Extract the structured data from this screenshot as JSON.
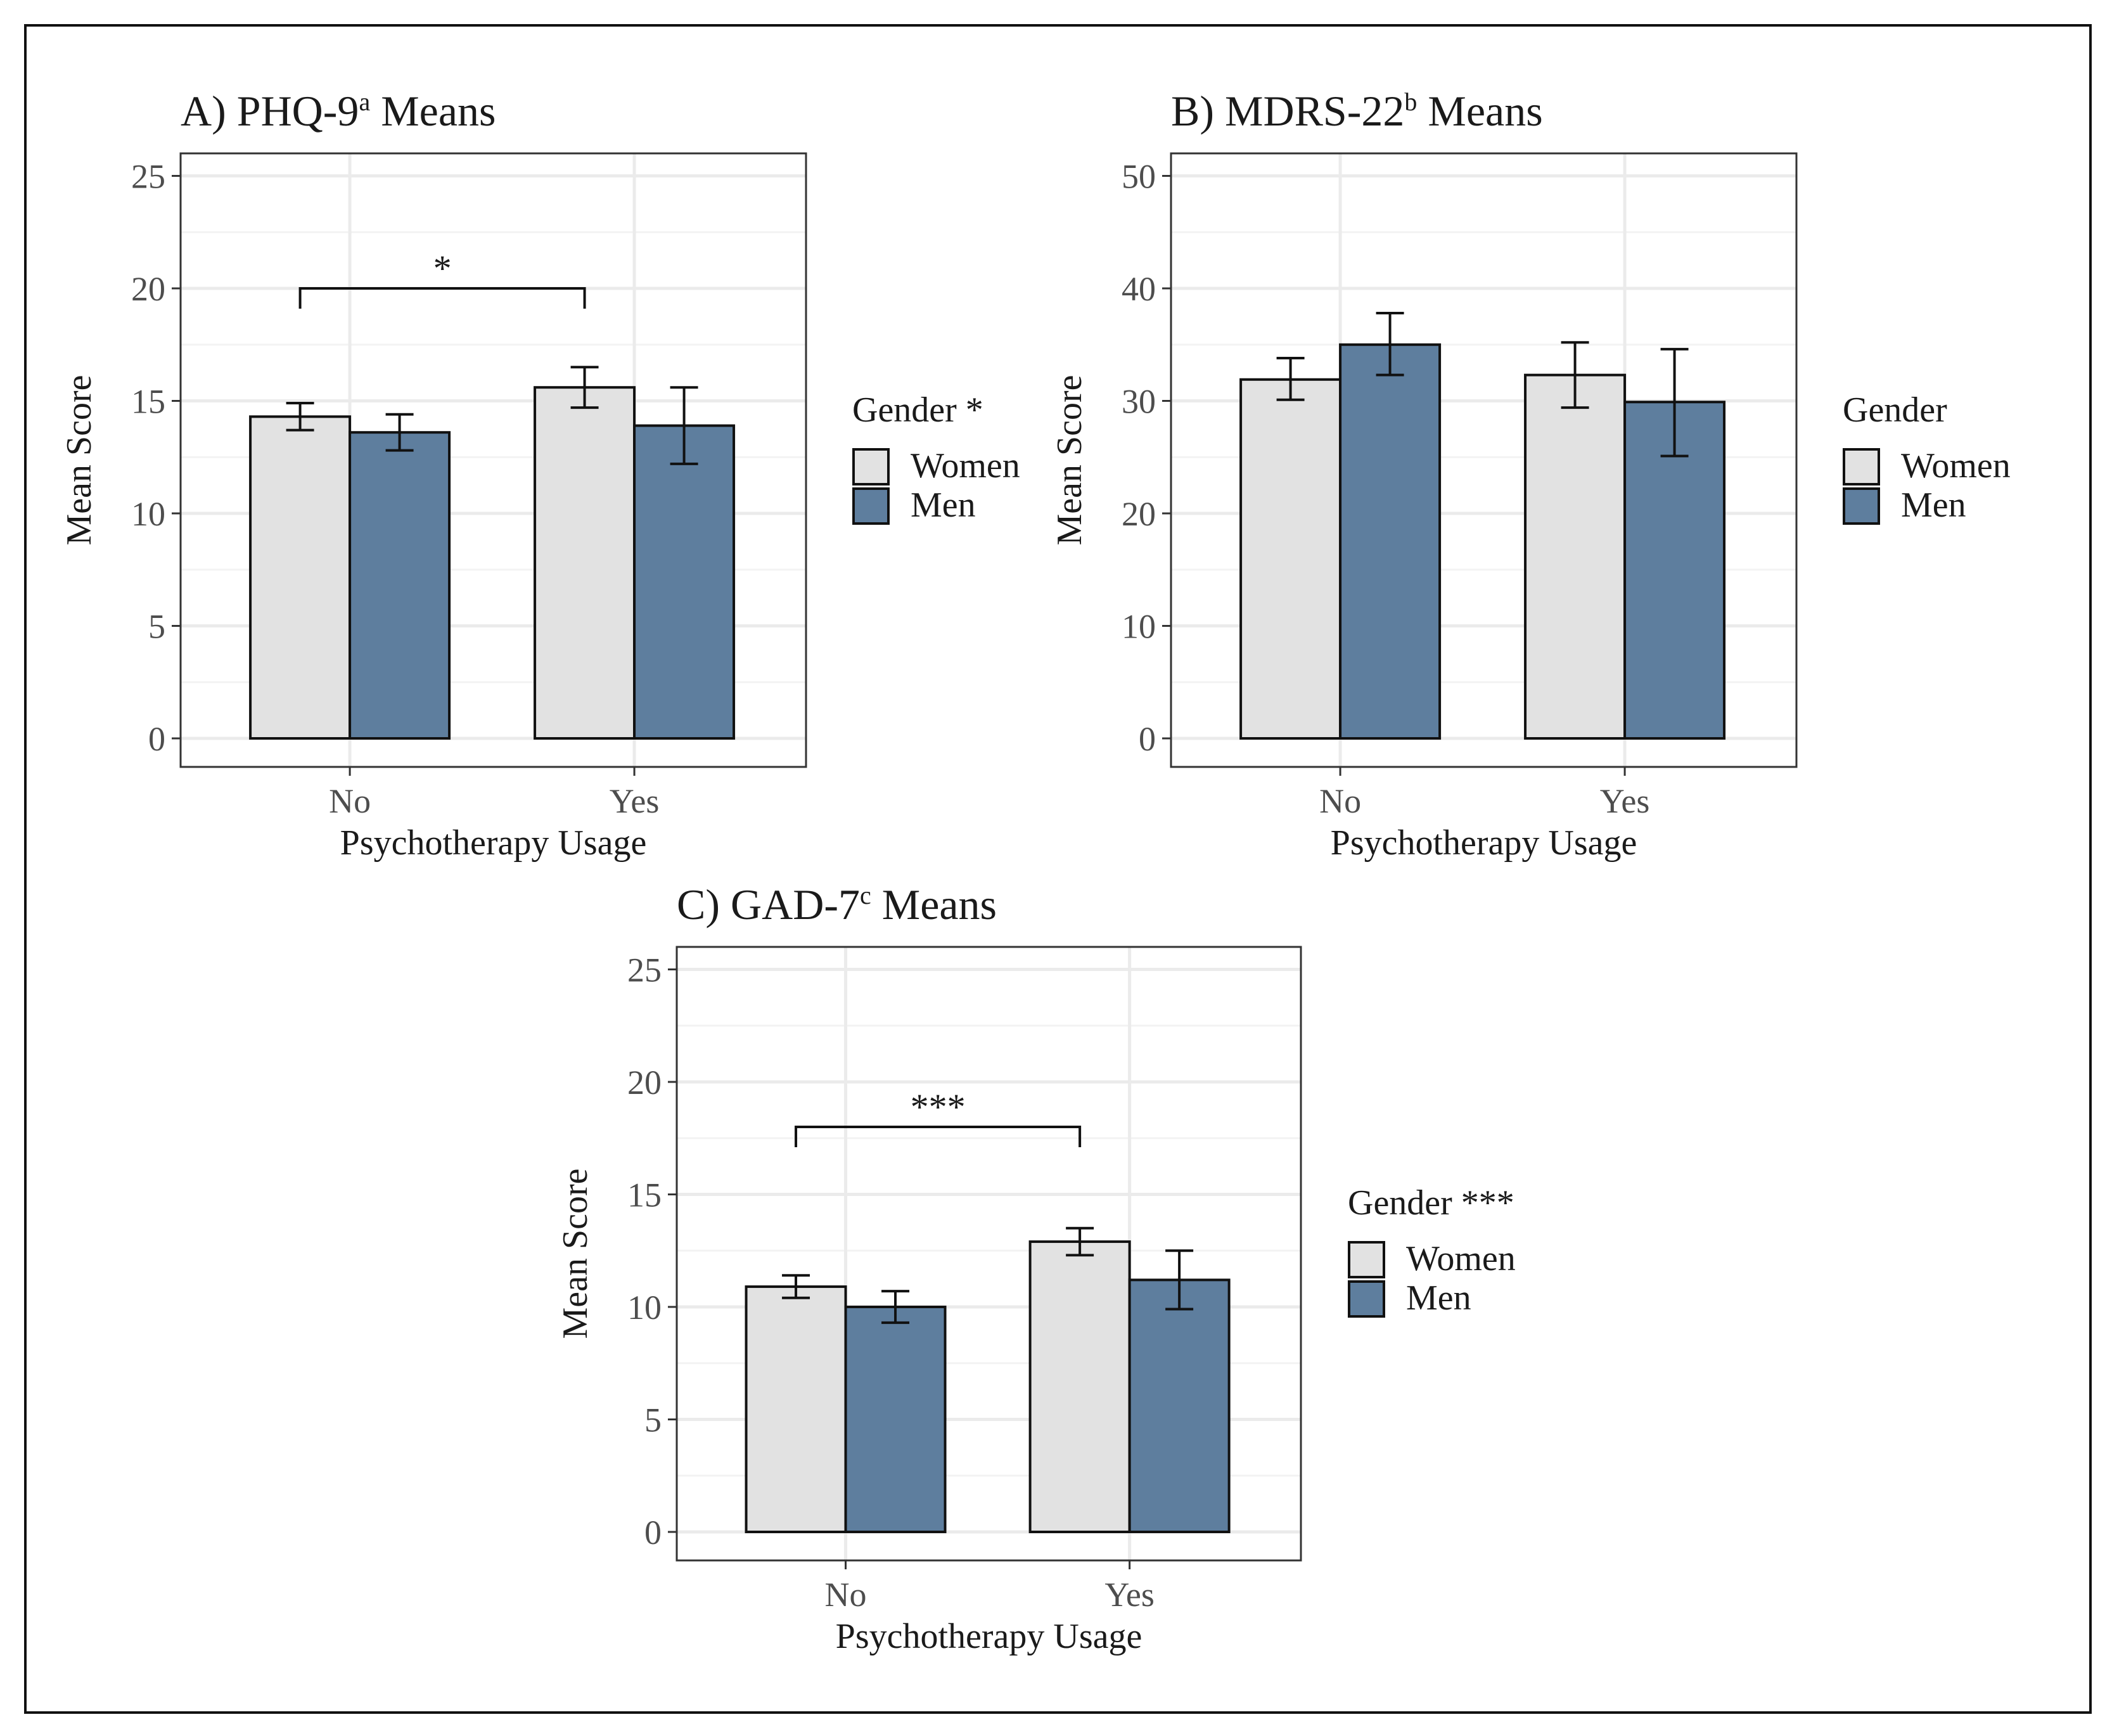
{
  "legend_labels": [
    "Women",
    "Men"
  ],
  "colors": {
    "women": "#e2e2e2",
    "men": "#5e7e9e",
    "stroke": "#111111",
    "grid": "#ebebeb",
    "text": "#4d4d4d",
    "title": "#1a1a1a"
  },
  "chart_data": [
    {
      "type": "bar",
      "title": "A) PHQ-9",
      "title_superscript": "a",
      "title_suffix": " Means",
      "xlabel": "Psychotherapy Usage",
      "ylabel": "Mean Score",
      "categories": [
        "No",
        "Yes"
      ],
      "ylim": [
        0,
        26
      ],
      "yticks": [
        0,
        5,
        10,
        15,
        20,
        25
      ],
      "ytick_labels": [
        "0",
        "5",
        "10",
        "15",
        "20",
        "25"
      ],
      "legend_title": "Gender *",
      "series": [
        {
          "name": "Women",
          "values": [
            14.3,
            15.6
          ],
          "err_low": [
            13.7,
            14.7
          ],
          "err_high": [
            14.9,
            16.5
          ]
        },
        {
          "name": "Men",
          "values": [
            13.6,
            13.9
          ],
          "err_low": [
            12.8,
            12.2
          ],
          "err_high": [
            14.4,
            15.6
          ]
        }
      ],
      "significance": [
        {
          "label": "*",
          "y": 20.0,
          "from_category": 0,
          "to_category": 1
        }
      ]
    },
    {
      "type": "bar",
      "title": "B) MDRS-22",
      "title_superscript": "b",
      "title_suffix": " Means",
      "xlabel": "Psychotherapy Usage",
      "ylabel": "Mean Score",
      "categories": [
        "No",
        "Yes"
      ],
      "ylim": [
        0,
        52
      ],
      "yticks": [
        0,
        10,
        20,
        30,
        40,
        50
      ],
      "ytick_labels": [
        "0",
        "10",
        "20",
        "30",
        "40",
        "50"
      ],
      "legend_title": "Gender",
      "series": [
        {
          "name": "Women",
          "values": [
            31.9,
            32.3
          ],
          "err_low": [
            30.1,
            29.4
          ],
          "err_high": [
            33.8,
            35.2
          ]
        },
        {
          "name": "Men",
          "values": [
            35.0,
            29.9
          ],
          "err_low": [
            32.3,
            25.1
          ],
          "err_high": [
            37.8,
            34.6
          ]
        }
      ],
      "significance": []
    },
    {
      "type": "bar",
      "title": "C) GAD-7",
      "title_superscript": "c",
      "title_suffix": " Means",
      "xlabel": "Psychotherapy Usage",
      "ylabel": "Mean Score",
      "categories": [
        "No",
        "Yes"
      ],
      "ylim": [
        0,
        26
      ],
      "yticks": [
        0,
        5,
        10,
        15,
        20,
        25
      ],
      "ytick_labels": [
        "0",
        "5",
        "10",
        "15",
        "20",
        "25"
      ],
      "legend_title": "Gender ***",
      "series": [
        {
          "name": "Women",
          "values": [
            10.9,
            12.9
          ],
          "err_low": [
            10.4,
            12.3
          ],
          "err_high": [
            11.4,
            13.5
          ]
        },
        {
          "name": "Men",
          "values": [
            10.0,
            11.2
          ],
          "err_low": [
            9.3,
            9.9
          ],
          "err_high": [
            10.7,
            12.5
          ]
        }
      ],
      "significance": [
        {
          "label": "***",
          "y": 18.0,
          "from_category": 0,
          "to_category": 1
        }
      ]
    }
  ]
}
